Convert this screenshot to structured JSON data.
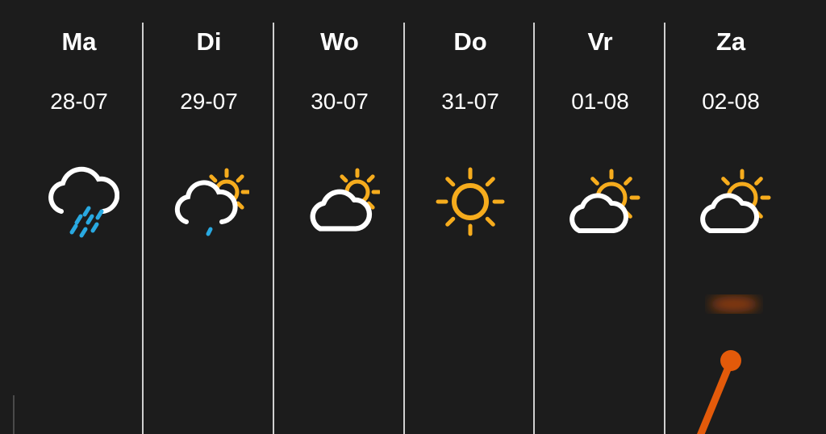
{
  "days": [
    {
      "day": "Ma",
      "date": "28-07",
      "icon": "rain-cloud-icon"
    },
    {
      "day": "Di",
      "date": "29-07",
      "icon": "partly-cloudy-light-rain-icon"
    },
    {
      "day": "Wo",
      "date": "30-07",
      "icon": "partly-cloudy-icon"
    },
    {
      "day": "Do",
      "date": "31-07",
      "icon": "sun-icon"
    },
    {
      "day": "Vr",
      "date": "01-08",
      "icon": "partly-sunny-icon"
    },
    {
      "day": "Za",
      "date": "02-08",
      "icon": "partly-sunny-icon"
    }
  ],
  "colors": {
    "background": "#1c1c1c",
    "sun": "#f6ac1d",
    "rain": "#29a9e1",
    "temperature_line": "#e35a0a"
  }
}
